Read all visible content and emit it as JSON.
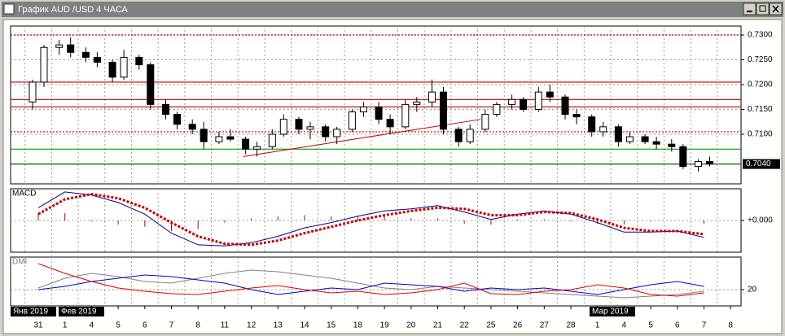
{
  "window": {
    "title": "График AUD /USD  4 ЧАСА"
  },
  "x_axis": {
    "categories": [
      "31",
      "1",
      "4",
      "5",
      "6",
      "7",
      "8",
      "11",
      "12",
      "13",
      "14",
      "15",
      "18",
      "19",
      "20",
      "21",
      "22",
      "25",
      "26",
      "27",
      "28",
      "1",
      "4",
      "5",
      "6",
      "7",
      "8"
    ],
    "months": [
      "Янв 2019",
      "Фев 2019",
      "Мар 2019"
    ]
  },
  "chart_data": [
    {
      "type": "candlestick",
      "open": [
        0.7165,
        0.7205,
        0.7275,
        0.728,
        0.7265,
        0.7255,
        0.7245,
        0.7215,
        0.7255,
        0.724,
        0.716,
        0.714,
        0.712,
        0.711,
        0.7085,
        0.7095,
        0.709,
        0.707,
        0.7075,
        0.71,
        0.713,
        0.711,
        0.7115,
        0.7095,
        0.711,
        0.7145,
        0.7155,
        0.713,
        0.7115,
        0.716,
        0.7165,
        0.7185,
        0.711,
        0.7085,
        0.711,
        0.714,
        0.716,
        0.717,
        0.715,
        0.7185,
        0.7175,
        0.714,
        0.7135,
        0.7105,
        0.7115,
        0.7085,
        0.7095,
        0.7085,
        0.708,
        0.7075,
        0.7035,
        0.7045
      ],
      "high": [
        0.721,
        0.728,
        0.729,
        0.7295,
        0.7275,
        0.7265,
        0.725,
        0.727,
        0.726,
        0.7245,
        0.717,
        0.7145,
        0.713,
        0.7125,
        0.7105,
        0.711,
        0.7095,
        0.7085,
        0.711,
        0.714,
        0.7135,
        0.7125,
        0.712,
        0.7115,
        0.715,
        0.7165,
        0.7165,
        0.714,
        0.717,
        0.7175,
        0.721,
        0.7195,
        0.7115,
        0.712,
        0.715,
        0.7165,
        0.718,
        0.7175,
        0.7195,
        0.72,
        0.718,
        0.715,
        0.714,
        0.7125,
        0.712,
        0.7105,
        0.71,
        0.7095,
        0.709,
        0.708,
        0.705,
        0.7055
      ],
      "low": [
        0.715,
        0.7195,
        0.726,
        0.7255,
        0.7245,
        0.7235,
        0.7205,
        0.721,
        0.723,
        0.715,
        0.713,
        0.711,
        0.71,
        0.707,
        0.708,
        0.7085,
        0.706,
        0.7055,
        0.707,
        0.7095,
        0.71,
        0.709,
        0.7085,
        0.708,
        0.7105,
        0.7135,
        0.712,
        0.71,
        0.711,
        0.7145,
        0.7155,
        0.71,
        0.7075,
        0.708,
        0.7105,
        0.7135,
        0.715,
        0.7145,
        0.7145,
        0.7165,
        0.713,
        0.712,
        0.7095,
        0.7095,
        0.7075,
        0.708,
        0.708,
        0.707,
        0.7065,
        0.703,
        0.7025,
        0.7035
      ],
      "close": [
        0.7205,
        0.7275,
        0.728,
        0.7265,
        0.7255,
        0.7245,
        0.7215,
        0.7255,
        0.724,
        0.716,
        0.714,
        0.712,
        0.711,
        0.7085,
        0.7095,
        0.709,
        0.707,
        0.7075,
        0.71,
        0.713,
        0.711,
        0.7115,
        0.7095,
        0.711,
        0.7145,
        0.7155,
        0.713,
        0.7115,
        0.716,
        0.7165,
        0.7185,
        0.711,
        0.7085,
        0.711,
        0.714,
        0.716,
        0.717,
        0.715,
        0.7185,
        0.7175,
        0.714,
        0.7135,
        0.7105,
        0.7115,
        0.7085,
        0.7095,
        0.7085,
        0.708,
        0.7075,
        0.7035,
        0.7045,
        0.704
      ],
      "ylim": [
        0.7,
        0.7318
      ],
      "yticks": [
        {
          "value": 0.73,
          "label": "0.7300"
        },
        {
          "value": 0.725,
          "label": "0.7250"
        },
        {
          "value": 0.72,
          "label": "0.7200"
        },
        {
          "value": 0.715,
          "label": "0.7150"
        },
        {
          "value": 0.71,
          "label": "0.7100"
        }
      ],
      "last_price": {
        "value": 0.704,
        "label": "0.7040"
      },
      "levels": [
        {
          "value": 0.73,
          "color": "#c00000",
          "style": "dotted"
        },
        {
          "value": 0.7205,
          "color": "#c00000",
          "style": "solid"
        },
        {
          "value": 0.717,
          "color": "#c00000",
          "style": "solid"
        },
        {
          "value": 0.7155,
          "color": "#c00000",
          "style": "solid"
        },
        {
          "value": 0.7105,
          "color": "#c00000",
          "style": "dotted"
        },
        {
          "value": 0.707,
          "color": "#00a000",
          "style": "solid"
        },
        {
          "value": 0.704,
          "color": "#006400",
          "style": "solid"
        }
      ],
      "trendline": {
        "values": [
          0.7055,
          0.713
        ],
        "color": "#c00000"
      }
    },
    {
      "type": "macd",
      "title": "MACD",
      "series": [
        {
          "color": "#000080",
          "values": [
            0.0012,
            0.0027,
            0.0024,
            0.0017,
            0.0006,
            -0.0012,
            -0.0023,
            -0.0024,
            -0.0021,
            -0.0015,
            -0.0007,
            -0.0002,
            0.0004,
            0.0009,
            0.0011,
            0.0014,
            0.0008,
            0.0001,
            0.0006,
            0.0009,
            0.0006,
            -0.0002,
            -0.0011,
            -0.0011,
            -0.001,
            -0.0016
          ]
        },
        {
          "color": "#c00000",
          "style": "dotted",
          "values": [
            0.0006,
            0.002,
            0.0025,
            0.0021,
            0.0012,
            -0.0002,
            -0.0015,
            -0.0022,
            -0.0023,
            -0.0019,
            -0.0012,
            -0.0006,
            0.0,
            0.0005,
            0.0009,
            0.0012,
            0.0011,
            0.0005,
            0.0005,
            0.0008,
            0.0007,
            0.0001,
            -0.0007,
            -0.001,
            -0.001,
            -0.0013
          ]
        }
      ],
      "histogram": {
        "color": "#c00000",
        "values": [
          0.0006,
          0.0007,
          -0.0001,
          -0.0004,
          -0.0006,
          -0.001,
          -0.0008,
          -0.0002,
          0.0002,
          0.0004,
          0.0005,
          0.0004,
          0.0004,
          0.0004,
          0.0002,
          0.0002,
          -0.0003,
          -0.0004,
          0.0001,
          0.0001,
          -0.0001,
          -0.0003,
          -0.0004,
          -0.0001,
          0.0,
          -0.0003
        ]
      },
      "ylim": [
        -0.003,
        0.003
      ],
      "yticks": [
        {
          "value": 0,
          "label": "+0.000"
        }
      ]
    },
    {
      "type": "dmi",
      "title": "DMI",
      "series": [
        {
          "color": "#808080",
          "values": [
            22,
            34,
            40,
            36,
            30,
            28,
            34,
            40,
            44,
            42,
            38,
            34,
            28,
            22,
            20,
            24,
            22,
            20,
            18,
            16,
            14,
            12,
            10,
            12,
            14,
            18
          ]
        },
        {
          "color": "#0000c0",
          "values": [
            20,
            24,
            30,
            34,
            38,
            36,
            32,
            28,
            20,
            14,
            18,
            22,
            20,
            28,
            26,
            24,
            18,
            22,
            20,
            22,
            18,
            14,
            20,
            26,
            30,
            24
          ]
        },
        {
          "color": "#e00000",
          "values": [
            52,
            40,
            30,
            22,
            18,
            15,
            14,
            18,
            22,
            25,
            20,
            16,
            18,
            14,
            16,
            20,
            28,
            15,
            14,
            18,
            20,
            26,
            22,
            14,
            12,
            16
          ]
        }
      ],
      "ylim": [
        0,
        60
      ],
      "yticks": [
        20
      ]
    }
  ]
}
